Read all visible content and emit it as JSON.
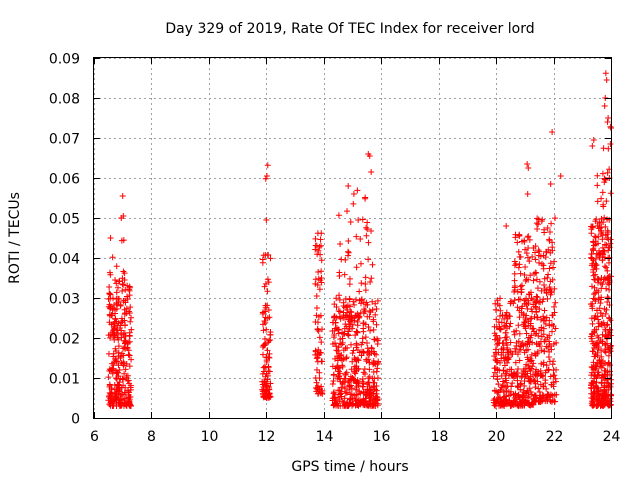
{
  "chart_data": {
    "type": "scatter",
    "title": "Day 329 of 2019, Rate Of TEC Index for receiver lord",
    "xlabel": "GPS time / hours",
    "ylabel": "ROTI / TECUs",
    "xlim": [
      6,
      24
    ],
    "ylim": [
      0,
      0.09
    ],
    "x_ticks": [
      "6",
      "8",
      "10",
      "12",
      "14",
      "16",
      "18",
      "20",
      "22",
      "24"
    ],
    "y_ticks": [
      "0",
      "0.01",
      "0.02",
      "0.03",
      "0.04",
      "0.05",
      "0.06",
      "0.07",
      "0.08",
      "0.09"
    ],
    "grid": true,
    "marker": "+",
    "color": "#ff0000",
    "clusters": [
      {
        "x_range": [
          6.5,
          7.3
        ],
        "y_range": [
          0.003,
          0.035
        ],
        "count": 260
      },
      {
        "x_range": [
          6.5,
          7.1
        ],
        "y_range": [
          0.02,
          0.046
        ],
        "count": 40
      },
      {
        "x_range": [
          11.85,
          12.15
        ],
        "y_range": [
          0.005,
          0.042
        ],
        "count": 110
      },
      {
        "x_range": [
          13.7,
          13.95
        ],
        "y_range": [
          0.006,
          0.047
        ],
        "count": 70
      },
      {
        "x_range": [
          14.3,
          15.9
        ],
        "y_range": [
          0.003,
          0.03
        ],
        "count": 420
      },
      {
        "x_range": [
          14.5,
          15.7
        ],
        "y_range": [
          0.025,
          0.058
        ],
        "count": 70
      },
      {
        "x_range": [
          19.9,
          20.6
        ],
        "y_range": [
          0.003,
          0.03
        ],
        "count": 190
      },
      {
        "x_range": [
          20.6,
          21.3
        ],
        "y_range": [
          0.003,
          0.046
        ],
        "count": 240
      },
      {
        "x_range": [
          21.3,
          22.1
        ],
        "y_range": [
          0.004,
          0.05
        ],
        "count": 230
      },
      {
        "x_range": [
          23.3,
          24.0
        ],
        "y_range": [
          0.003,
          0.05
        ],
        "count": 380
      },
      {
        "x_range": [
          23.3,
          24.0
        ],
        "y_range": [
          0.04,
          0.07
        ],
        "count": 40
      }
    ],
    "points": [
      {
        "x": 7.0,
        "y": 0.0555
      },
      {
        "x": 6.95,
        "y": 0.05
      },
      {
        "x": 7.02,
        "y": 0.0505
      },
      {
        "x": 12.05,
        "y": 0.0632
      },
      {
        "x": 12.02,
        "y": 0.0605
      },
      {
        "x": 11.98,
        "y": 0.0598
      },
      {
        "x": 12.0,
        "y": 0.0495
      },
      {
        "x": 15.55,
        "y": 0.066
      },
      {
        "x": 15.6,
        "y": 0.0655
      },
      {
        "x": 15.65,
        "y": 0.0615
      },
      {
        "x": 14.85,
        "y": 0.058
      },
      {
        "x": 15.05,
        "y": 0.056
      },
      {
        "x": 21.08,
        "y": 0.0635
      },
      {
        "x": 21.12,
        "y": 0.0625
      },
      {
        "x": 21.1,
        "y": 0.056
      },
      {
        "x": 21.95,
        "y": 0.0715
      },
      {
        "x": 21.9,
        "y": 0.0585
      },
      {
        "x": 22.25,
        "y": 0.0605
      },
      {
        "x": 20.35,
        "y": 0.048
      },
      {
        "x": 23.82,
        "y": 0.0862
      },
      {
        "x": 23.85,
        "y": 0.0845
      },
      {
        "x": 23.8,
        "y": 0.08
      },
      {
        "x": 23.78,
        "y": 0.078
      },
      {
        "x": 23.9,
        "y": 0.075
      },
      {
        "x": 23.88,
        "y": 0.074
      },
      {
        "x": 23.98,
        "y": 0.0728
      },
      {
        "x": 24.0,
        "y": 0.0725
      },
      {
        "x": 23.4,
        "y": 0.0695
      },
      {
        "x": 23.35,
        "y": 0.068
      },
      {
        "x": 23.98,
        "y": 0.0685
      }
    ]
  }
}
